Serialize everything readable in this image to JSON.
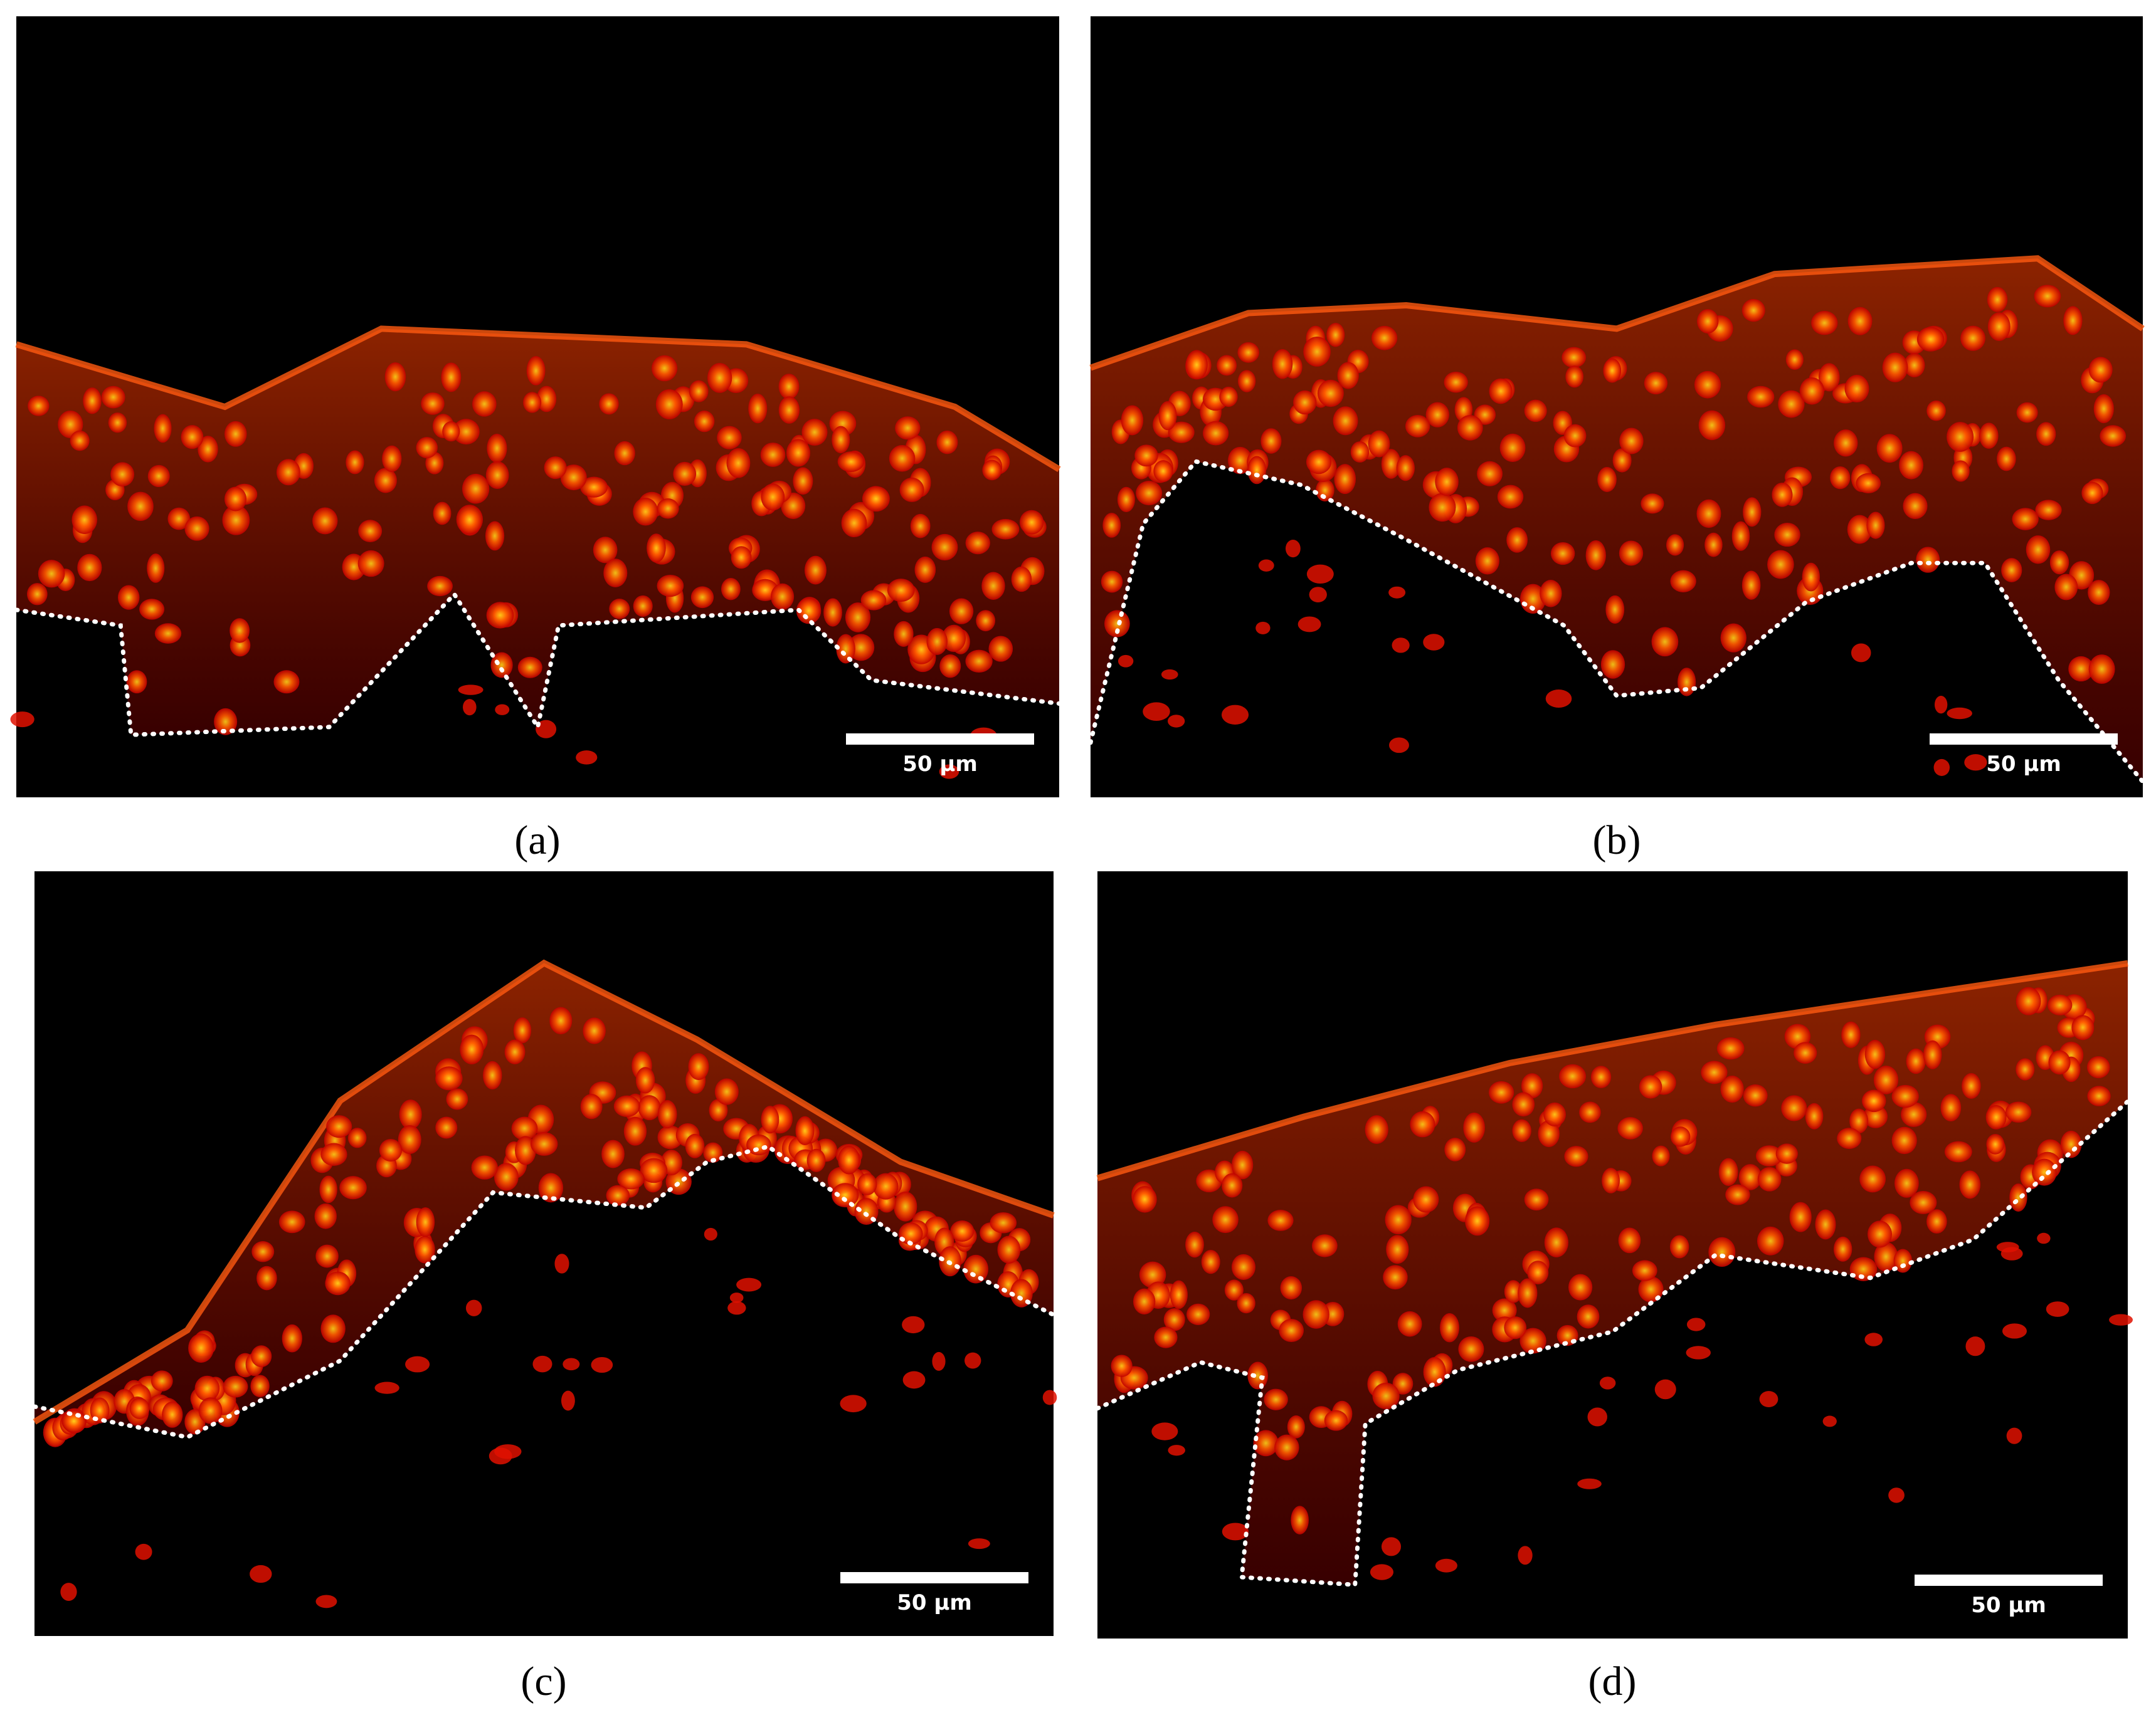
{
  "panels": [
    {
      "label": "(a)",
      "scale_bar": "50 µm"
    },
    {
      "label": "(b)",
      "scale_bar": "50 µm"
    },
    {
      "label": "(c)",
      "scale_bar": "50 µm"
    },
    {
      "label": "(d)",
      "scale_bar": "50 µm"
    }
  ]
}
